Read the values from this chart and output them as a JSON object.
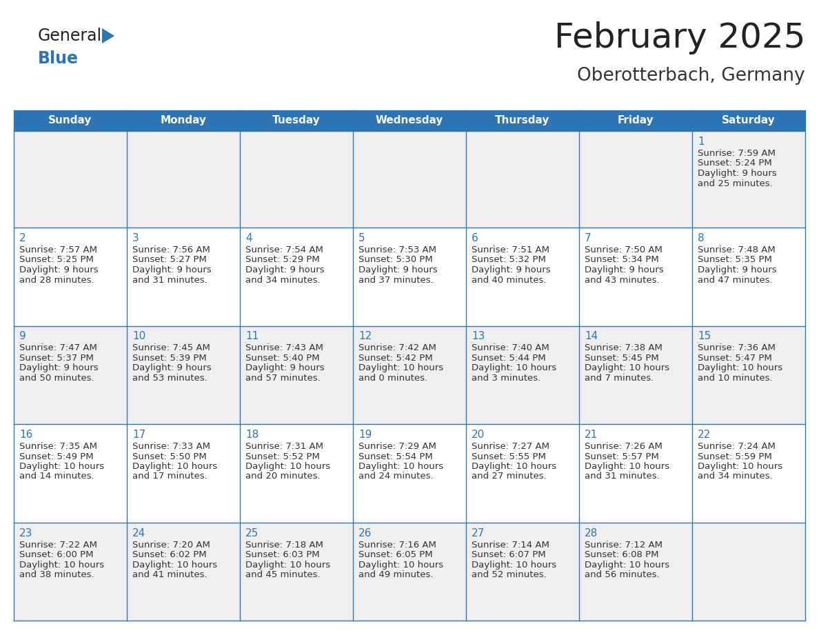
{
  "title": "February 2025",
  "subtitle": "Oberotterbach, Germany",
  "header_bg": "#2E75B6",
  "header_text_color": "#FFFFFF",
  "cell_bg_light": "#EFEFEF",
  "cell_bg_white": "#FFFFFF",
  "border_color": "#2E75B6",
  "day_headers": [
    "Sunday",
    "Monday",
    "Tuesday",
    "Wednesday",
    "Thursday",
    "Friday",
    "Saturday"
  ],
  "title_color": "#222222",
  "subtitle_color": "#333333",
  "day_number_color": "#2E75B6",
  "info_color": "#333333",
  "logo_general_color": "#222222",
  "logo_blue_color": "#2E75B6",
  "logo_triangle_color": "#2E75B6",
  "calendar": [
    [
      null,
      null,
      null,
      null,
      null,
      null,
      {
        "day": 1,
        "sunrise": "7:59 AM",
        "sunset": "5:24 PM",
        "daylight": "9 hours",
        "daylight2": "and 25 minutes."
      }
    ],
    [
      {
        "day": 2,
        "sunrise": "7:57 AM",
        "sunset": "5:25 PM",
        "daylight": "9 hours",
        "daylight2": "and 28 minutes."
      },
      {
        "day": 3,
        "sunrise": "7:56 AM",
        "sunset": "5:27 PM",
        "daylight": "9 hours",
        "daylight2": "and 31 minutes."
      },
      {
        "day": 4,
        "sunrise": "7:54 AM",
        "sunset": "5:29 PM",
        "daylight": "9 hours",
        "daylight2": "and 34 minutes."
      },
      {
        "day": 5,
        "sunrise": "7:53 AM",
        "sunset": "5:30 PM",
        "daylight": "9 hours",
        "daylight2": "and 37 minutes."
      },
      {
        "day": 6,
        "sunrise": "7:51 AM",
        "sunset": "5:32 PM",
        "daylight": "9 hours",
        "daylight2": "and 40 minutes."
      },
      {
        "day": 7,
        "sunrise": "7:50 AM",
        "sunset": "5:34 PM",
        "daylight": "9 hours",
        "daylight2": "and 43 minutes."
      },
      {
        "day": 8,
        "sunrise": "7:48 AM",
        "sunset": "5:35 PM",
        "daylight": "9 hours",
        "daylight2": "and 47 minutes."
      }
    ],
    [
      {
        "day": 9,
        "sunrise": "7:47 AM",
        "sunset": "5:37 PM",
        "daylight": "9 hours",
        "daylight2": "and 50 minutes."
      },
      {
        "day": 10,
        "sunrise": "7:45 AM",
        "sunset": "5:39 PM",
        "daylight": "9 hours",
        "daylight2": "and 53 minutes."
      },
      {
        "day": 11,
        "sunrise": "7:43 AM",
        "sunset": "5:40 PM",
        "daylight": "9 hours",
        "daylight2": "and 57 minutes."
      },
      {
        "day": 12,
        "sunrise": "7:42 AM",
        "sunset": "5:42 PM",
        "daylight": "10 hours",
        "daylight2": "and 0 minutes."
      },
      {
        "day": 13,
        "sunrise": "7:40 AM",
        "sunset": "5:44 PM",
        "daylight": "10 hours",
        "daylight2": "and 3 minutes."
      },
      {
        "day": 14,
        "sunrise": "7:38 AM",
        "sunset": "5:45 PM",
        "daylight": "10 hours",
        "daylight2": "and 7 minutes."
      },
      {
        "day": 15,
        "sunrise": "7:36 AM",
        "sunset": "5:47 PM",
        "daylight": "10 hours",
        "daylight2": "and 10 minutes."
      }
    ],
    [
      {
        "day": 16,
        "sunrise": "7:35 AM",
        "sunset": "5:49 PM",
        "daylight": "10 hours",
        "daylight2": "and 14 minutes."
      },
      {
        "day": 17,
        "sunrise": "7:33 AM",
        "sunset": "5:50 PM",
        "daylight": "10 hours",
        "daylight2": "and 17 minutes."
      },
      {
        "day": 18,
        "sunrise": "7:31 AM",
        "sunset": "5:52 PM",
        "daylight": "10 hours",
        "daylight2": "and 20 minutes."
      },
      {
        "day": 19,
        "sunrise": "7:29 AM",
        "sunset": "5:54 PM",
        "daylight": "10 hours",
        "daylight2": "and 24 minutes."
      },
      {
        "day": 20,
        "sunrise": "7:27 AM",
        "sunset": "5:55 PM",
        "daylight": "10 hours",
        "daylight2": "and 27 minutes."
      },
      {
        "day": 21,
        "sunrise": "7:26 AM",
        "sunset": "5:57 PM",
        "daylight": "10 hours",
        "daylight2": "and 31 minutes."
      },
      {
        "day": 22,
        "sunrise": "7:24 AM",
        "sunset": "5:59 PM",
        "daylight": "10 hours",
        "daylight2": "and 34 minutes."
      }
    ],
    [
      {
        "day": 23,
        "sunrise": "7:22 AM",
        "sunset": "6:00 PM",
        "daylight": "10 hours",
        "daylight2": "and 38 minutes."
      },
      {
        "day": 24,
        "sunrise": "7:20 AM",
        "sunset": "6:02 PM",
        "daylight": "10 hours",
        "daylight2": "and 41 minutes."
      },
      {
        "day": 25,
        "sunrise": "7:18 AM",
        "sunset": "6:03 PM",
        "daylight": "10 hours",
        "daylight2": "and 45 minutes."
      },
      {
        "day": 26,
        "sunrise": "7:16 AM",
        "sunset": "6:05 PM",
        "daylight": "10 hours",
        "daylight2": "and 49 minutes."
      },
      {
        "day": 27,
        "sunrise": "7:14 AM",
        "sunset": "6:07 PM",
        "daylight": "10 hours",
        "daylight2": "and 52 minutes."
      },
      {
        "day": 28,
        "sunrise": "7:12 AM",
        "sunset": "6:08 PM",
        "daylight": "10 hours",
        "daylight2": "and 56 minutes."
      },
      null
    ]
  ]
}
